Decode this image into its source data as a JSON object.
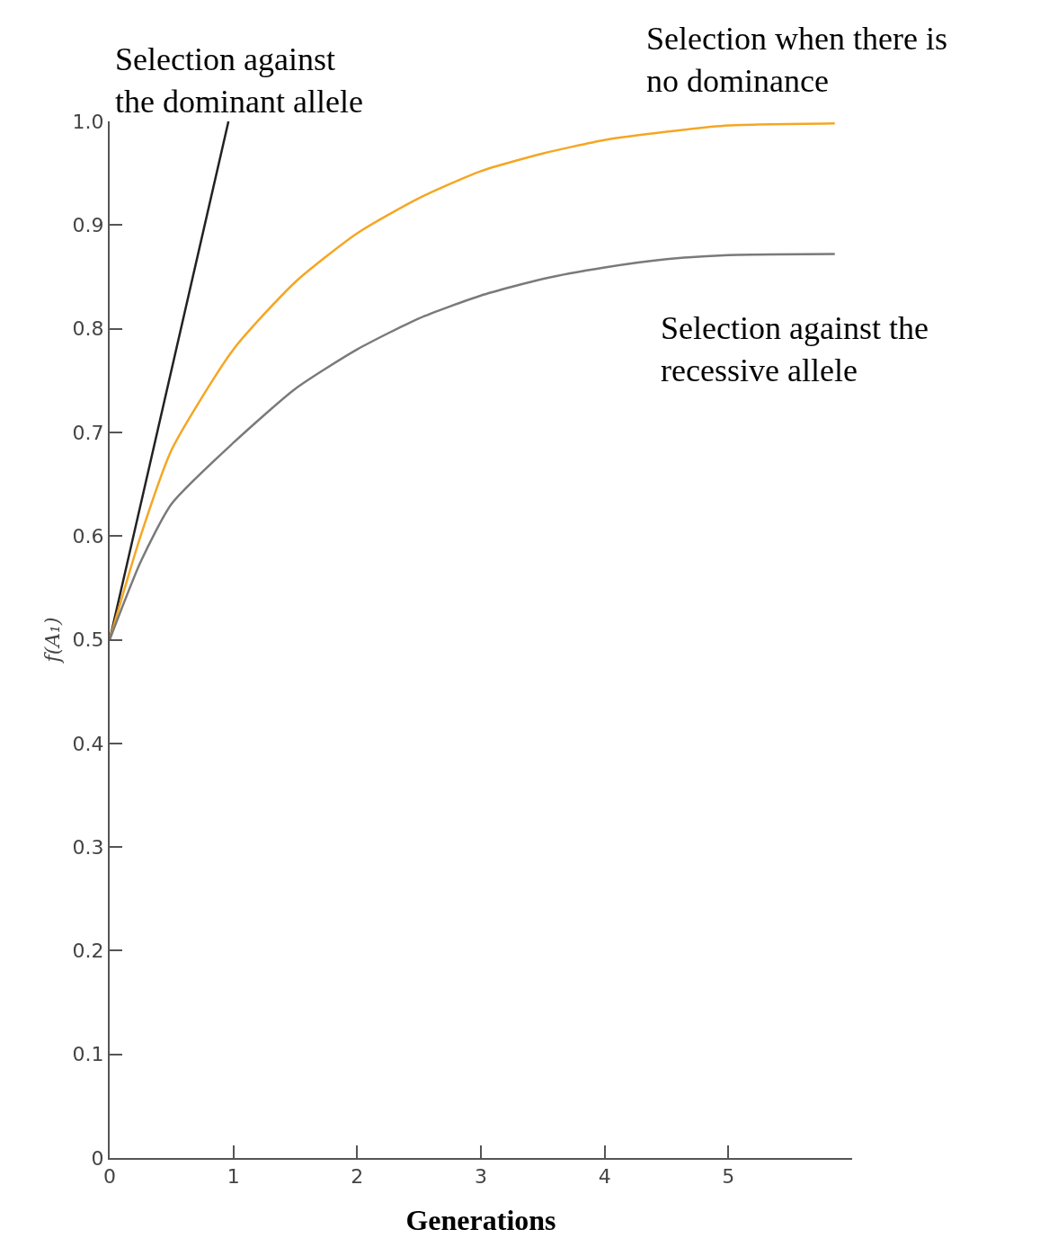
{
  "chart_data": {
    "type": "line",
    "xlabel": "Generations",
    "ylabel": "f(A₁)",
    "xlim": [
      0,
      6
    ],
    "xticks": [
      0,
      1,
      2,
      3,
      4,
      5
    ],
    "ylim": [
      0,
      1.0
    ],
    "yticks": [
      0,
      0.1,
      0.2,
      0.3,
      0.4,
      0.5,
      0.6,
      0.7,
      0.8,
      0.9,
      {
        "value": 1.0,
        "label": "1.0"
      }
    ],
    "grid": false,
    "marker": "none",
    "line_style": "solid",
    "annotations": [
      "Selection against the dominant allele",
      "Selection when there is no dominance",
      "Selection against the recessive allele"
    ],
    "series": [
      {
        "color": "#222222",
        "x": [
          0,
          0.96
        ],
        "values": [
          0.5,
          1.0
        ]
      },
      {
        "color": "#f5a623",
        "x": [
          0,
          0.25,
          0.5,
          1.0,
          1.5,
          2,
          2.5,
          3,
          3.5,
          4,
          4.5,
          5,
          5.86
        ],
        "values": [
          0.5,
          0.6,
          0.683,
          0.78,
          0.845,
          0.892,
          0.926,
          0.952,
          0.969,
          0.982,
          0.99,
          0.996,
          0.998
        ]
      },
      {
        "color": "#7a7a7a",
        "x": [
          0,
          0.25,
          0.5,
          1.0,
          1.5,
          2,
          2.5,
          3,
          3.5,
          4,
          4.5,
          5,
          5.86
        ],
        "values": [
          0.5,
          0.575,
          0.631,
          0.69,
          0.742,
          0.78,
          0.81,
          0.832,
          0.848,
          0.859,
          0.867,
          0.871,
          0.872
        ]
      }
    ]
  }
}
